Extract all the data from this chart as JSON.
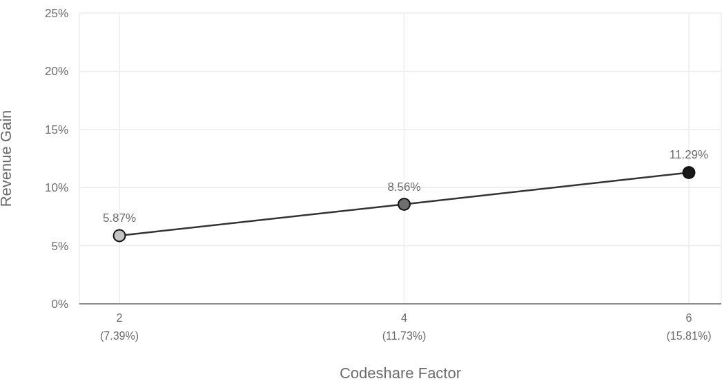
{
  "chart_data": {
    "type": "line",
    "xlabel": "Codeshare Factor",
    "ylabel": "Revenue Gain",
    "categories": [
      "2\n(7.39%)",
      "4\n(11.73%)",
      "6\n(15.81%)"
    ],
    "series": [
      {
        "color": "#333333",
        "colors": [
          "#c4c4c4",
          "#6e6e6e",
          "#1a1a1a"
        ],
        "values": [
          5.87,
          8.56,
          11.29
        ],
        "value_labels": [
          "5.87%",
          "8.56%",
          "11.29%"
        ]
      }
    ],
    "ylim": [
      0,
      25
    ],
    "yticks": [
      {
        "value": 0,
        "label": "0%"
      },
      {
        "value": 5,
        "label": "5%"
      },
      {
        "value": 10,
        "label": "10%"
      },
      {
        "value": 15,
        "label": "15%"
      },
      {
        "value": 20,
        "label": "20%"
      },
      {
        "value": 25,
        "label": "25%"
      }
    ],
    "grid": true,
    "marker": "circle",
    "line_style": "solid"
  }
}
